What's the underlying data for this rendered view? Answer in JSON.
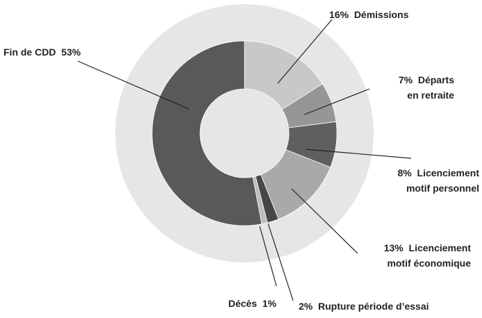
{
  "chart_data": {
    "type": "donut",
    "categories": [
      "Démissions",
      "Départs\nen retraite",
      "Licenciement\nmotif personnel",
      "Licenciement\nmotif économique",
      "Rupture période d’essai",
      "Décès",
      "Fin de CDD"
    ],
    "values": [
      16,
      7,
      8,
      13,
      2,
      1,
      53
    ],
    "value_labels": [
      "16%",
      "7%",
      "8%",
      "13%",
      "2%",
      "1%",
      "53%"
    ],
    "colors": [
      "#c8c8c8",
      "#969696",
      "#5f5f5f",
      "#a9a9a9",
      "#474747",
      "#bdbdbd",
      "#595959"
    ]
  }
}
